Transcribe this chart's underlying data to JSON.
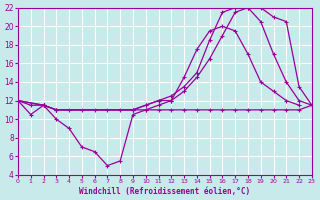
{
  "background_color": "#c8eaea",
  "grid_color": "#ffffff",
  "line_color": "#990099",
  "xlim": [
    0,
    23
  ],
  "ylim": [
    4,
    22
  ],
  "xticks": [
    0,
    1,
    2,
    3,
    4,
    5,
    6,
    7,
    8,
    9,
    10,
    11,
    12,
    13,
    14,
    15,
    16,
    17,
    18,
    19,
    20,
    21,
    22,
    23
  ],
  "yticks": [
    4,
    6,
    8,
    10,
    12,
    14,
    16,
    18,
    20,
    22
  ],
  "xlabel": "Windchill (Refroidissement éolien,°C)",
  "line1_x": [
    0,
    1,
    2,
    3,
    4,
    5,
    6,
    7,
    8,
    9,
    10,
    11,
    12,
    13,
    14,
    15,
    16,
    17,
    18,
    19,
    20,
    21,
    22
  ],
  "line1_y": [
    12,
    10.5,
    11.5,
    10,
    9,
    7,
    6.5,
    5,
    5.5,
    10.5,
    11,
    11.5,
    12,
    14.5,
    17.5,
    19.5,
    20,
    19.5,
    17,
    14,
    13,
    12,
    11.5
  ],
  "line2_x": [
    0,
    1,
    2,
    3,
    4,
    5,
    6,
    7,
    8,
    9,
    10,
    11,
    12,
    13,
    14,
    15,
    16,
    17,
    18,
    19,
    20,
    21,
    22,
    23
  ],
  "line2_y": [
    12,
    11.5,
    11.5,
    11,
    11,
    11,
    11,
    11,
    11,
    11,
    11,
    11,
    11,
    11,
    11,
    11,
    11,
    11,
    11,
    11,
    11,
    11,
    11,
    11.5
  ],
  "line3_x": [
    0,
    2,
    3,
    9,
    10,
    11,
    12,
    13,
    14,
    15,
    16,
    17,
    18,
    19,
    20,
    21,
    22,
    23
  ],
  "line3_y": [
    12,
    11.5,
    11,
    11,
    11.5,
    12,
    12.5,
    13.5,
    15,
    18.5,
    21.5,
    22,
    22,
    20.5,
    17,
    14,
    12,
    11.5
  ],
  "line4_x": [
    0,
    2,
    3,
    9,
    10,
    11,
    12,
    13,
    14,
    15,
    16,
    17,
    18,
    19,
    20,
    21,
    22,
    23
  ],
  "line4_y": [
    12,
    11.5,
    11,
    11,
    11.5,
    12,
    12,
    13,
    14.5,
    16.5,
    19,
    21.5,
    22,
    22,
    21,
    20.5,
    13.5,
    11.5
  ]
}
